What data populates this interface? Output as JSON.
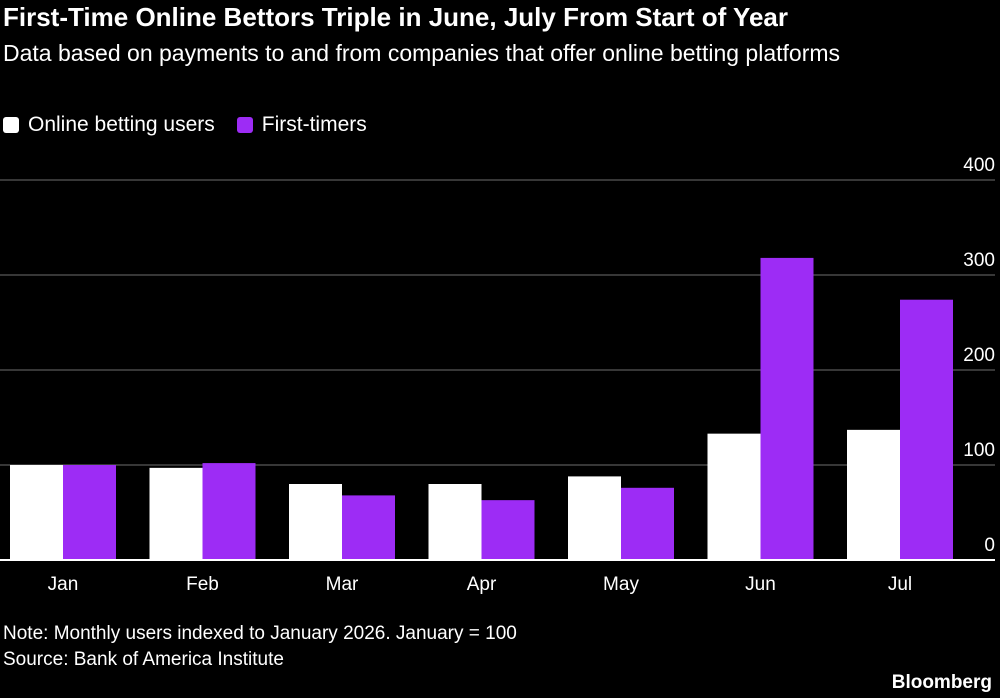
{
  "header": {
    "title": "First-Time Online Bettors Triple in June, July From Start of Year",
    "subtitle": "Data based on payments to and from companies that offer online betting platforms"
  },
  "footer": {
    "note": "Note: Monthly users indexed to January 2026. January = 100",
    "source": "Source: Bank of America Institute",
    "brand": "Bloomberg"
  },
  "colors": {
    "background": "#000000",
    "series_1": "#ffffff",
    "series_2": "#9d2cf5",
    "grid": "#6e6e6e",
    "axis": "#ffffff"
  },
  "chart_data": {
    "type": "bar",
    "categories": [
      "Jan",
      "Feb",
      "Mar",
      "Apr",
      "May",
      "Jun",
      "Jul"
    ],
    "series": [
      {
        "name": "Online betting users",
        "values": [
          100,
          97,
          80,
          80,
          88,
          133,
          137
        ]
      },
      {
        "name": "First-timers",
        "values": [
          100,
          102,
          68,
          63,
          76,
          318,
          274
        ]
      }
    ],
    "y_ticks": [
      "0",
      "100",
      "200",
      "300",
      "400"
    ],
    "ylim": [
      0,
      400
    ],
    "grid": true,
    "legend_position": "top-left",
    "y_axis_side": "right"
  }
}
